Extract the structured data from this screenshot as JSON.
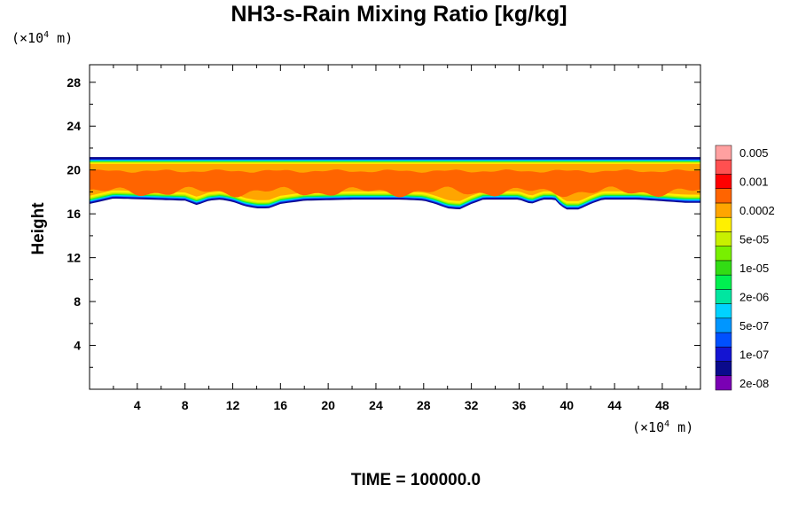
{
  "chart_data": {
    "type": "heatmap",
    "title": "NH3-s-Rain Mixing Ratio [kg/kg]",
    "ylabel": "Height",
    "xlabel": "",
    "x_unit_prefix": "(×10",
    "x_unit_exp": "4",
    "x_unit_suffix": " m)",
    "y_unit_prefix": "(×10",
    "y_unit_exp": "4",
    "y_unit_suffix": " m)",
    "footer": "TIME = 100000.0",
    "xlim": [
      0,
      51.2
    ],
    "ylim": [
      0,
      29.6
    ],
    "x_ticks": [
      4,
      8,
      12,
      16,
      20,
      24,
      28,
      32,
      36,
      40,
      44,
      48
    ],
    "y_ticks": [
      4,
      8,
      12,
      16,
      20,
      24,
      28
    ],
    "colorbar": {
      "levels": [
        {
          "color": "#7a00b4",
          "label": "2e-08"
        },
        {
          "color": "#0a0a8c",
          "label": ""
        },
        {
          "color": "#1414d2",
          "label": "1e-07"
        },
        {
          "color": "#0050ff",
          "label": ""
        },
        {
          "color": "#0096ff",
          "label": "5e-07"
        },
        {
          "color": "#00d2ff",
          "label": ""
        },
        {
          "color": "#00e6a0",
          "label": "2e-06"
        },
        {
          "color": "#00f050",
          "label": ""
        },
        {
          "color": "#32dc14",
          "label": "1e-05"
        },
        {
          "color": "#78f000",
          "label": ""
        },
        {
          "color": "#c8f000",
          "label": "5e-05"
        },
        {
          "color": "#fff000",
          "label": ""
        },
        {
          "color": "#ffa500",
          "label": "0.0002"
        },
        {
          "color": "#ff6400",
          "label": ""
        },
        {
          "color": "#ff0000",
          "label": "0.001"
        },
        {
          "color": "#ff5050",
          "label": ""
        },
        {
          "color": "#ffa0a0",
          "label": "0.005"
        }
      ]
    },
    "layer": {
      "top_height": 21.1,
      "core_top_height": 19.9,
      "core_bottom_height": 18.0,
      "bottom_height_profile": {
        "x": [
          0,
          2,
          5,
          8,
          9,
          10,
          11,
          12,
          13,
          14,
          15,
          16,
          18,
          22,
          26,
          28,
          29,
          30,
          31,
          32,
          33,
          36,
          37,
          38,
          39,
          39.5,
          40,
          41,
          42,
          43,
          46,
          50,
          51.2
        ],
        "y": [
          16.9,
          17.4,
          17.3,
          17.2,
          16.8,
          17.2,
          17.3,
          17.1,
          16.7,
          16.5,
          16.5,
          16.9,
          17.2,
          17.3,
          17.3,
          17.2,
          16.9,
          16.5,
          16.4,
          16.9,
          17.3,
          17.3,
          16.9,
          17.3,
          17.3,
          16.7,
          16.4,
          16.4,
          16.9,
          17.3,
          17.3,
          17.0,
          17.0
        ]
      }
    }
  }
}
